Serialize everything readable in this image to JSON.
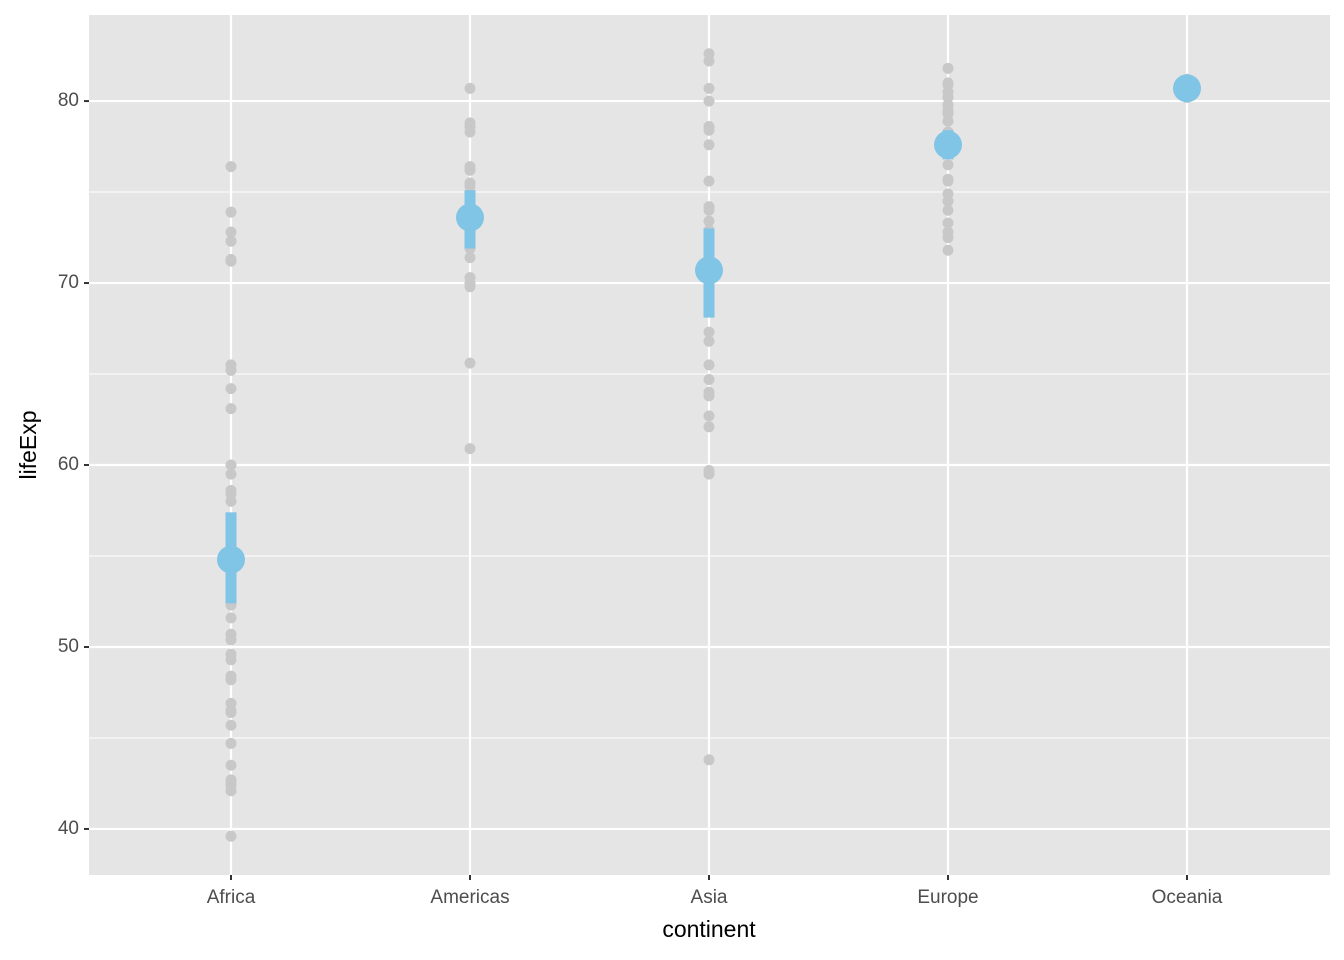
{
  "chart_data": {
    "type": "strip",
    "x_label": "continent",
    "y_label": "lifeExp",
    "categories": [
      "Africa",
      "Americas",
      "Asia",
      "Europe",
      "Oceania"
    ],
    "points": [
      [
        76.4,
        73.9,
        72.8,
        72.3,
        71.3,
        71.2,
        65.5,
        65.2,
        64.2,
        63.1,
        60.0,
        59.5,
        58.6,
        58.4,
        58.0,
        56.9,
        56.7,
        56.0,
        55.3,
        54.8,
        54.5,
        54.1,
        52.9,
        52.5,
        52.3,
        51.6,
        50.7,
        50.4,
        49.6,
        49.3,
        48.4,
        48.2,
        46.9,
        46.5,
        46.4,
        45.7,
        44.7,
        43.5,
        42.7,
        42.6,
        42.4,
        42.1,
        39.6
      ],
      [
        80.7,
        78.8,
        78.6,
        78.3,
        76.4,
        76.2,
        75.5,
        75.3,
        74.2,
        73.7,
        73.0,
        72.9,
        72.8,
        72.6,
        72.4,
        71.9,
        71.4,
        70.3,
        70.0,
        69.8,
        65.6,
        60.9
      ],
      [
        82.6,
        82.2,
        80.7,
        80.0,
        78.6,
        78.4,
        77.6,
        75.6,
        74.2,
        74.0,
        73.4,
        72.9,
        72.4,
        72.0,
        71.4,
        70.6,
        70.2,
        67.3,
        66.8,
        65.5,
        64.7,
        64.0,
        63.8,
        62.7,
        62.1,
        59.7,
        59.5,
        43.8
      ],
      [
        81.8,
        81.0,
        80.9,
        80.5,
        80.2,
        79.8,
        79.5,
        79.4,
        79.3,
        78.9,
        78.3,
        77.9,
        76.5,
        75.7,
        75.6,
        74.9,
        74.5,
        74.0,
        73.3,
        72.8,
        72.5,
        71.8
      ],
      [
        81.2,
        80.2
      ]
    ],
    "means": [
      54.8,
      73.6,
      70.7,
      77.6,
      80.7
    ],
    "ci_low": [
      52.4,
      71.9,
      68.1,
      76.8,
      null
    ],
    "ci_high": [
      57.4,
      75.1,
      73.0,
      78.4,
      null
    ],
    "point_color": "#c8c8c8",
    "mean_color": "#80c4e6",
    "ylim": [
      37.47,
      84.73
    ],
    "yticks": [
      40,
      50,
      60,
      70,
      80
    ],
    "grid": true
  }
}
